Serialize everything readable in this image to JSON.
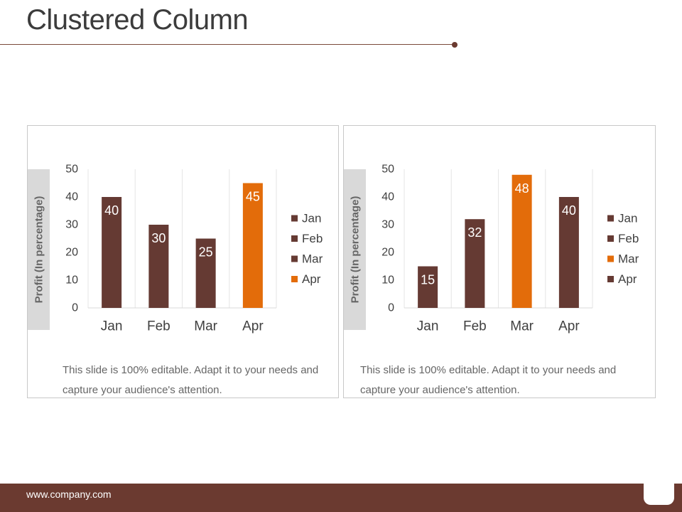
{
  "slide": {
    "title": "Clustered Column"
  },
  "footer": {
    "url": "www.company.com"
  },
  "colors": {
    "dark": "#653a33",
    "accent": "#e36c0a",
    "grid": "#e6e6e6",
    "label_band": "#d9d9d9"
  },
  "chart_data": [
    {
      "type": "bar",
      "categories": [
        "Jan",
        "Feb",
        "Mar",
        "Apr"
      ],
      "values": [
        40,
        30,
        25,
        45
      ],
      "highlight": [
        false,
        false,
        false,
        true
      ],
      "title": "",
      "xlabel": "",
      "ylabel": "Profit  (In percentage)",
      "ylim": [
        0,
        50
      ],
      "yticks": [
        0,
        10,
        20,
        30,
        40,
        50
      ],
      "legend": {
        "position": "right",
        "entries": [
          {
            "label": "Jan",
            "color": "#653a33"
          },
          {
            "label": "Feb",
            "color": "#653a33"
          },
          {
            "label": "Mar",
            "color": "#653a33"
          },
          {
            "label": "Apr",
            "color": "#e36c0a"
          }
        ]
      },
      "caption": "This slide is 100% editable. Adapt it to your needs and capture your audience's attention."
    },
    {
      "type": "bar",
      "categories": [
        "Jan",
        "Feb",
        "Mar",
        "Apr"
      ],
      "values": [
        15,
        32,
        48,
        40
      ],
      "highlight": [
        false,
        false,
        true,
        false
      ],
      "title": "",
      "xlabel": "",
      "ylabel": "Profit  (In percentage)",
      "ylim": [
        0,
        50
      ],
      "yticks": [
        0,
        10,
        20,
        30,
        40,
        50
      ],
      "legend": {
        "position": "right",
        "entries": [
          {
            "label": "Jan",
            "color": "#653a33"
          },
          {
            "label": "Feb",
            "color": "#653a33"
          },
          {
            "label": "Mar",
            "color": "#e36c0a"
          },
          {
            "label": "Apr",
            "color": "#653a33"
          }
        ]
      },
      "caption": "This slide is 100% editable. Adapt it to your needs and capture your audience's attention."
    }
  ]
}
